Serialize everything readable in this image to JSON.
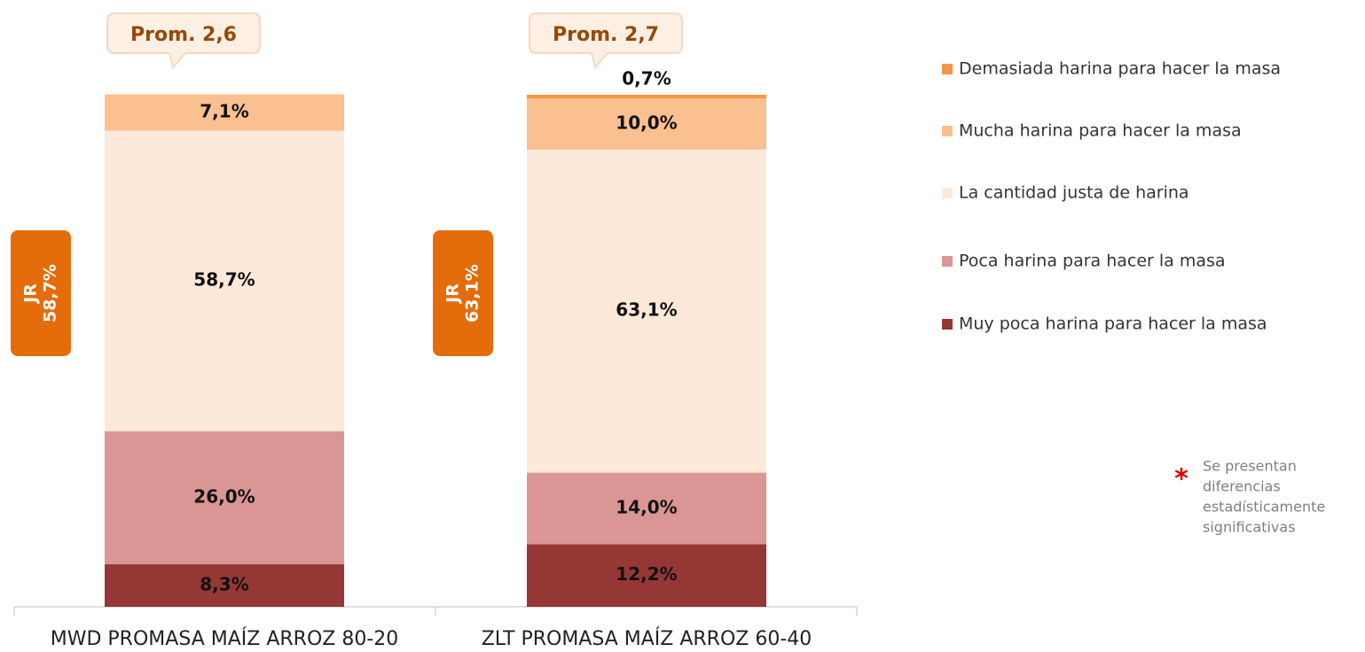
{
  "chart_data": {
    "type": "stacked_bar",
    "categories": [
      "MWD PROMASA MAÍZ ARROZ 80-20",
      "ZLT PROMASA MAÍZ ARROZ 60-40"
    ],
    "series": [
      {
        "name": "Demasiada harina para hacer la masa",
        "color": "#f79646",
        "values": [
          0,
          0.7
        ],
        "value_labels": [
          null,
          "0,7%"
        ]
      },
      {
        "name": "Mucha harina para hacer la masa",
        "color": "#fac090",
        "values": [
          7.1,
          10.0
        ],
        "value_labels": [
          "7,1%",
          "10,0%"
        ]
      },
      {
        "name": "La cantidad justa de harina",
        "color": "#fde9d9",
        "values": [
          58.7,
          63.1
        ],
        "value_labels": [
          "58,7%",
          "63,1%"
        ]
      },
      {
        "name": "Poca harina para hacer la masa",
        "color": "#d99694",
        "values": [
          26.0,
          14.0
        ],
        "value_labels": [
          "26,0%",
          "14,0%"
        ]
      },
      {
        "name": "Muy poca harina para hacer la masa",
        "color": "#953735",
        "values": [
          8.3,
          12.2
        ],
        "value_labels": [
          "8,3%",
          "12,2%"
        ]
      }
    ],
    "ylim": [
      0,
      100
    ],
    "averages": [
      "Prom. 2,6",
      "Prom. 2,7"
    ],
    "jr_labels": [
      {
        "title": "JR",
        "value": 58.7,
        "label": "58,7%"
      },
      {
        "title": "JR",
        "value": 63.1,
        "label": "63,1%"
      }
    ],
    "footnote": {
      "symbol": "*",
      "lines": [
        "Se presentan",
        "diferencias",
        "estadísticamente",
        "significativas"
      ]
    }
  }
}
